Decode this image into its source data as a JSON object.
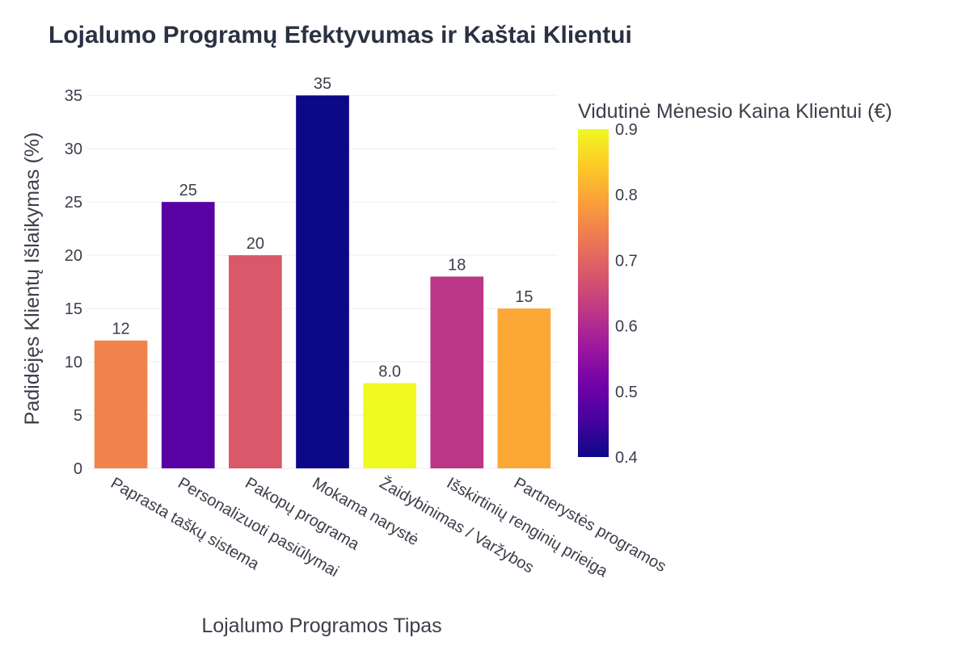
{
  "chart_data": {
    "type": "bar",
    "title": "Lojalumo Programų Efektyvumas ir Kaštai Klientui",
    "xlabel": "Lojalumo Programos Tipas",
    "ylabel": "Padidėjęs Klientų Išlaikymas (%)",
    "ylim": [
      0,
      36
    ],
    "yticks": [
      "0",
      "5",
      "10",
      "15",
      "20",
      "25",
      "30",
      "35"
    ],
    "grid": true,
    "categories": [
      "Paprasta taškų sistema",
      "Personalizuoti pasiūlymai",
      "Pakopų programa",
      "Mokama narystė",
      "Žaidybinimas / Varžybos",
      "Išskirtinių renginių prieiga",
      "Partnerystės programos"
    ],
    "values": [
      12,
      25,
      20,
      35,
      8,
      18,
      15
    ],
    "data_labels": [
      "12",
      "25",
      "20",
      "35",
      "8.0",
      "18",
      "15"
    ],
    "color_values": [
      0.75,
      0.48,
      0.68,
      0.4,
      0.9,
      0.62,
      0.8
    ],
    "colorbar": {
      "title": "Vidutinė Mėnesio Kaina Klientui (€)",
      "range": [
        0.4,
        0.9
      ],
      "ticks": [
        "0.4",
        "0.5",
        "0.6",
        "0.7",
        "0.8",
        "0.9"
      ],
      "colorscale": "plasma"
    }
  }
}
